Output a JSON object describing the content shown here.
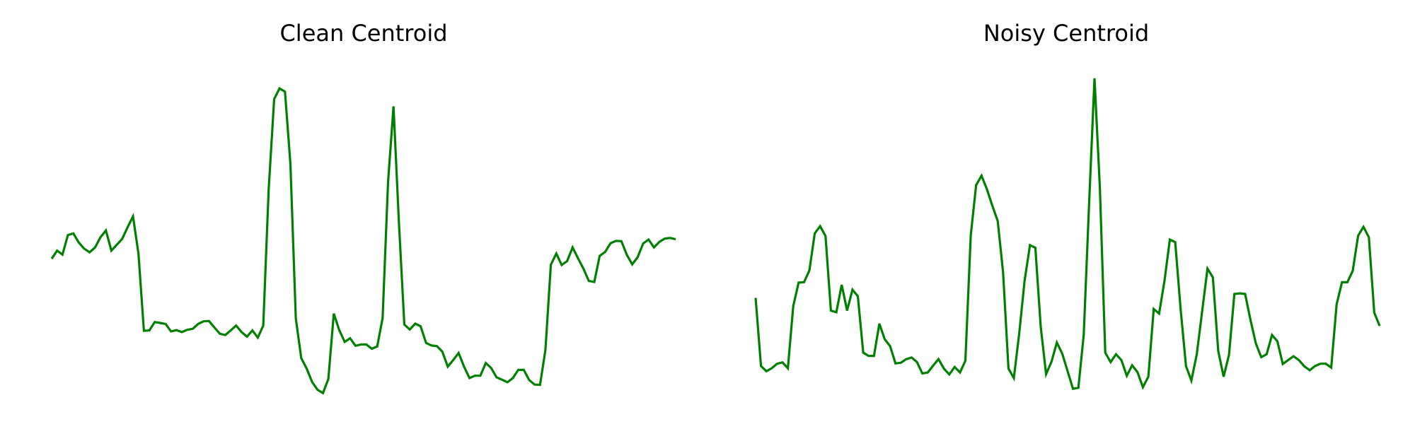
{
  "chart_data": [
    {
      "type": "line",
      "title": "Clean Centroid",
      "xlabel": "",
      "ylabel": "",
      "axes_visible": false,
      "grid": false,
      "ylim": [
        0.0,
        1.0
      ],
      "series": [
        {
          "color": "#008000",
          "values": [
            0.416,
            0.441,
            0.429,
            0.489,
            0.494,
            0.466,
            0.447,
            0.436,
            0.451,
            0.482,
            0.503,
            0.441,
            0.459,
            0.477,
            0.513,
            0.546,
            0.432,
            0.195,
            0.196,
            0.222,
            0.219,
            0.216,
            0.193,
            0.197,
            0.191,
            0.198,
            0.201,
            0.216,
            0.224,
            0.225,
            0.205,
            0.186,
            0.182,
            0.196,
            0.211,
            0.191,
            0.177,
            0.196,
            0.174,
            0.211,
            0.631,
            0.906,
            0.939,
            0.929,
            0.707,
            0.233,
            0.111,
            0.079,
            0.038,
            0.014,
            0.004,
            0.047,
            0.248,
            0.197,
            0.161,
            0.172,
            0.149,
            0.153,
            0.153,
            0.14,
            0.147,
            0.234,
            0.652,
            0.884,
            0.525,
            0.214,
            0.199,
            0.217,
            0.209,
            0.158,
            0.15,
            0.148,
            0.131,
            0.085,
            0.105,
            0.127,
            0.085,
            0.05,
            0.057,
            0.057,
            0.096,
            0.081,
            0.052,
            0.045,
            0.037,
            0.05,
            0.075,
            0.075,
            0.044,
            0.03,
            0.029,
            0.136,
            0.398,
            0.432,
            0.397,
            0.409,
            0.451,
            0.418,
            0.386,
            0.348,
            0.345,
            0.425,
            0.437,
            0.464,
            0.471,
            0.47,
            0.428,
            0.399,
            0.421,
            0.463,
            0.475,
            0.451,
            0.468,
            0.478,
            0.48,
            0.476
          ]
        }
      ]
    },
    {
      "type": "line",
      "title": "Noisy Centroid",
      "xlabel": "",
      "ylabel": "",
      "axes_visible": false,
      "grid": false,
      "ylim": [
        0.0,
        1.0
      ],
      "series": [
        {
          "color": "#008000",
          "values": [
            0.296,
            0.087,
            0.071,
            0.08,
            0.094,
            0.098,
            0.08,
            0.271,
            0.343,
            0.344,
            0.38,
            0.494,
            0.516,
            0.486,
            0.257,
            0.252,
            0.336,
            0.257,
            0.321,
            0.301,
            0.128,
            0.118,
            0.118,
            0.217,
            0.169,
            0.148,
            0.095,
            0.097,
            0.108,
            0.113,
            0.099,
            0.064,
            0.067,
            0.088,
            0.108,
            0.079,
            0.061,
            0.084,
            0.067,
            0.103,
            0.488,
            0.642,
            0.671,
            0.63,
            0.579,
            0.532,
            0.374,
            0.079,
            0.05,
            0.187,
            0.349,
            0.458,
            0.45,
            0.207,
            0.062,
            0.1,
            0.159,
            0.125,
            0.071,
            0.017,
            0.02,
            0.183,
            0.587,
            0.97,
            0.634,
            0.128,
            0.099,
            0.123,
            0.105,
            0.057,
            0.089,
            0.068,
            0.022,
            0.054,
            0.262,
            0.248,
            0.348,
            0.475,
            0.467,
            0.262,
            0.087,
            0.042,
            0.122,
            0.254,
            0.386,
            0.359,
            0.133,
            0.054,
            0.121,
            0.308,
            0.31,
            0.308,
            0.228,
            0.156,
            0.114,
            0.123,
            0.182,
            0.163,
            0.093,
            0.105,
            0.117,
            0.105,
            0.086,
            0.074,
            0.087,
            0.094,
            0.094,
            0.082,
            0.276,
            0.344,
            0.344,
            0.379,
            0.487,
            0.514,
            0.482,
            0.251,
            0.21
          ]
        }
      ]
    }
  ]
}
